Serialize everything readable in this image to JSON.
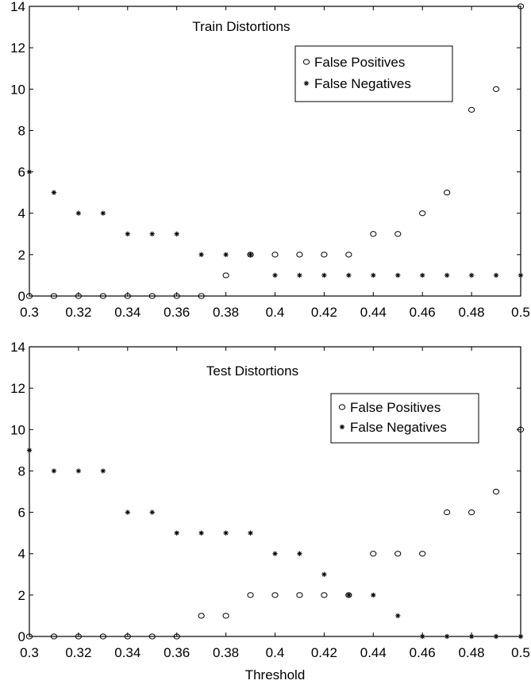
{
  "chart_data": [
    {
      "type": "scatter",
      "title": "Train Distortions",
      "xlabel": "",
      "ylabel": "",
      "xlim": [
        0.3,
        0.5
      ],
      "ylim": [
        0,
        14
      ],
      "x_ticks": [
        "0.3",
        "0.32",
        "0.34",
        "0.36",
        "0.38",
        "0.4",
        "0.42",
        "0.44",
        "0.46",
        "0.48",
        "0.5"
      ],
      "y_ticks": [
        "0",
        "2",
        "4",
        "6",
        "8",
        "10",
        "12",
        "14"
      ],
      "legend_position": "top-right",
      "grid": false,
      "series": [
        {
          "name": "False Positives",
          "marker": "circle",
          "x": [
            0.3,
            0.31,
            0.32,
            0.33,
            0.34,
            0.35,
            0.36,
            0.37,
            0.38,
            0.39,
            0.4,
            0.41,
            0.42,
            0.43,
            0.44,
            0.45,
            0.46,
            0.47,
            0.48,
            0.49,
            0.5
          ],
          "y": [
            0,
            0,
            0,
            0,
            0,
            0,
            0,
            0,
            1,
            2,
            2,
            2,
            2,
            2,
            3,
            3,
            4,
            5,
            9,
            10,
            14
          ]
        },
        {
          "name": "False Negatives",
          "marker": "star",
          "x": [
            0.3,
            0.31,
            0.32,
            0.33,
            0.34,
            0.35,
            0.36,
            0.37,
            0.38,
            0.39,
            0.4,
            0.41,
            0.42,
            0.43,
            0.44,
            0.45,
            0.46,
            0.47,
            0.48,
            0.49,
            0.5
          ],
          "y": [
            6,
            5,
            4,
            4,
            3,
            3,
            3,
            2,
            2,
            2,
            1,
            1,
            1,
            1,
            1,
            1,
            1,
            1,
            1,
            1,
            1
          ]
        }
      ]
    },
    {
      "type": "scatter",
      "title": "Test Distortions",
      "xlabel": "Threshold",
      "ylabel": "",
      "xlim": [
        0.3,
        0.5
      ],
      "ylim": [
        0,
        14
      ],
      "x_ticks": [
        "0.3",
        "0.32",
        "0.34",
        "0.36",
        "0.38",
        "0.4",
        "0.42",
        "0.44",
        "0.46",
        "0.48",
        "0.5"
      ],
      "y_ticks": [
        "0",
        "2",
        "4",
        "6",
        "8",
        "10",
        "12",
        "14"
      ],
      "legend_position": "top-right",
      "grid": false,
      "series": [
        {
          "name": "False Positives",
          "marker": "circle",
          "x": [
            0.3,
            0.31,
            0.32,
            0.33,
            0.34,
            0.35,
            0.36,
            0.37,
            0.38,
            0.39,
            0.4,
            0.41,
            0.42,
            0.43,
            0.44,
            0.45,
            0.46,
            0.47,
            0.48,
            0.49,
            0.5
          ],
          "y": [
            0,
            0,
            0,
            0,
            0,
            0,
            0,
            1,
            1,
            2,
            2,
            2,
            2,
            2,
            4,
            4,
            4,
            6,
            6,
            7,
            10
          ]
        },
        {
          "name": "False Negatives",
          "marker": "star",
          "x": [
            0.3,
            0.31,
            0.32,
            0.33,
            0.34,
            0.35,
            0.36,
            0.37,
            0.38,
            0.39,
            0.4,
            0.41,
            0.42,
            0.43,
            0.44,
            0.45,
            0.46,
            0.47,
            0.48,
            0.49,
            0.5
          ],
          "y": [
            9,
            8,
            8,
            8,
            6,
            6,
            5,
            5,
            5,
            5,
            4,
            4,
            3,
            2,
            2,
            1,
            0,
            0,
            0,
            0,
            0
          ]
        }
      ]
    }
  ]
}
